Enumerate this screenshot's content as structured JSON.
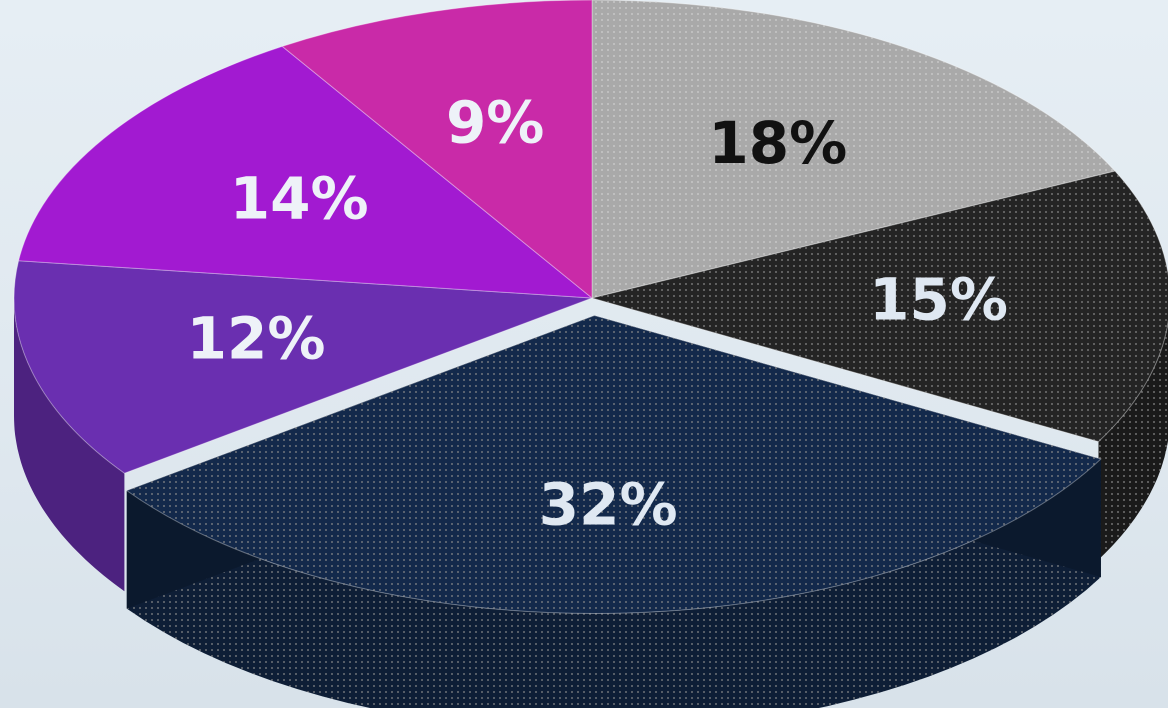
{
  "chart_data": {
    "type": "pie",
    "style": "3d-exploded",
    "title": "",
    "slices": [
      {
        "label": "18%",
        "value": 18,
        "color": "#a9a9a9",
        "label_color": "#111111",
        "pattern": "dots-light"
      },
      {
        "label": "15%",
        "value": 15,
        "color": "#242424",
        "label_color": "#dfe8f2",
        "pattern": "dots-dark"
      },
      {
        "label": "32%",
        "value": 32,
        "color": "#13294b",
        "label_color": "#dfe8f2",
        "pattern": "dots-dark",
        "exploded": true
      },
      {
        "label": "12%",
        "value": 12,
        "color": "#6a2fb0",
        "label_color": "#eef2f8",
        "pattern": "none"
      },
      {
        "label": "14%",
        "value": 14,
        "color": "#a21ad1",
        "label_color": "#eef2f8",
        "pattern": "none"
      },
      {
        "label": "9%",
        "value": 9,
        "color": "#c92aa8",
        "label_color": "#eef2f8",
        "pattern": "none"
      }
    ],
    "start_angle_deg": 0,
    "direction": "clockwise",
    "legend": "none",
    "data_labels": "inside"
  }
}
